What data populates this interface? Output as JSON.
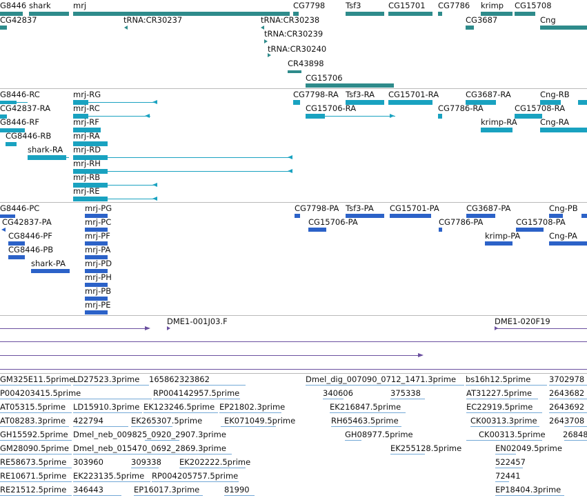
{
  "colors": {
    "gene": "#2e8b8b",
    "transcript": "#19a2c0",
    "protein": "#2c62c8",
    "clone": "#6a4f9f",
    "est": "#72a8d6",
    "separator": "#b9b9b9"
  },
  "gene_track": {
    "labels": [
      "G8446",
      "shark",
      "mrj",
      "CG7798",
      "Tsf3",
      "CG15701",
      "CG7786",
      "krimp",
      "CG15708",
      "CG42837",
      "tRNA:CR30237",
      "tRNA:CR30238",
      "CG3687",
      "Cng",
      "tRNA:CR30239",
      "tRNA:CR30240",
      "CR43898",
      "CG15706"
    ]
  },
  "transcript_track": {
    "labels": [
      "G8446-RC",
      "mrj-RG",
      "CG7798-RA",
      "Tsf3-RA",
      "CG15701-RA",
      "CG3687-RA",
      "Cng-RB",
      "CG42837-RA",
      "mrj-RC",
      "CG15706-RA",
      "CG7786-RA",
      "CG15708-RA",
      "G8446-RF",
      "mrj-RF",
      "krimp-RA",
      "Cng-RA",
      "CG8446-RB",
      "mrj-RA",
      "shark-RA",
      "mrj-RD",
      "mrj-RH",
      "mrj-RB",
      "mrj-RE"
    ]
  },
  "protein_track": {
    "labels": [
      "G8446-PC",
      "mrj-PG",
      "CG7798-PA",
      "Tsf3-PA",
      "CG15701-PA",
      "CG3687-PA",
      "Cng-PB",
      "CG42837-PA",
      "mrj-PC",
      "CG15706-PA",
      "CG7786-PA",
      "CG15708-PA",
      "CG8446-PF",
      "mrj-PF",
      "krimp-PA",
      "Cng-PA",
      "CG8446-PB",
      "mrj-PA",
      "shark-PA",
      "mrj-PD",
      "mrj-PH",
      "mrj-PB",
      "mrj-PE"
    ]
  },
  "clone_track": {
    "labels": [
      "DME1-001J03.F",
      "DME1-020F19"
    ]
  },
  "est_track": {
    "labels": [
      "GM325E11.5prime",
      "LD27523.3prime",
      "165862",
      "323862",
      "Dmel_dig_007090_0712_1471.3prime",
      "bs16h12.5prime",
      "3702978",
      "P004203415.5prime",
      "RP004142957.5prime",
      "340606",
      "375338",
      "AT31227.5prime",
      "2643682",
      "AT05315.5prime",
      "LD15910.3prime",
      "EK123246.5prime",
      "EP21802.3prime",
      "EK216847.5prime",
      "EC22919.5prime",
      "2643692",
      "AT08283.3prime",
      "422794",
      "EK265307.5prime",
      "EK071049.5prime",
      "RH65463.5prime",
      "CK00313.3prime",
      "2643708",
      "GH15592.5prime",
      "Dmel_neb_009825_0920_2907.3prime",
      "GH08977.5prime",
      "CK00313.5prime",
      "26848",
      "GM28090.5prime",
      "Dmel_neb_015470_0692_2869.3prime",
      "EK255128.5prime",
      "EN02049.5prime",
      "RE58673.5prime",
      "303960",
      "309338",
      "EK202222.5prime",
      "522457",
      "RE10671.5prime",
      "EK223135.5prime",
      "RP004205757.5prime",
      "72441",
      "RE21512.5prime",
      "346443",
      "EP16017.3prime",
      "81990",
      "EP18404.3prime"
    ]
  }
}
